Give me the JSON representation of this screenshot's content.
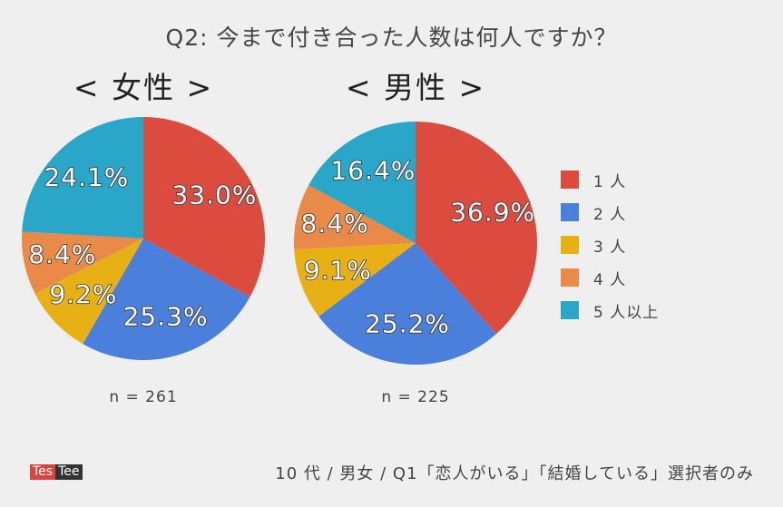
{
  "chart_data": [
    {
      "type": "pie",
      "title": "Q2: 今まで付き合った人数は何人ですか？",
      "subtitle": "< 女性 >",
      "categories": [
        "1人",
        "2人",
        "3人",
        "4人",
        "5人以上"
      ],
      "values": [
        33.0,
        25.3,
        9.2,
        8.4,
        24.1
      ],
      "labels": [
        "33.0%",
        "25.3%",
        "9.2%",
        "8.4%",
        "24.1%"
      ],
      "n": "n = 261",
      "colors": [
        "#db4c3f",
        "#4a7fdc",
        "#e7b015",
        "#ea8a48",
        "#29a6c8"
      ]
    },
    {
      "type": "pie",
      "title": "Q2: 今まで付き合った人数は何人ですか？",
      "subtitle": "< 男性 >",
      "categories": [
        "1人",
        "2人",
        "3人",
        "4人",
        "5人以上"
      ],
      "values": [
        36.9,
        25.2,
        9.1,
        8.4,
        16.4
      ],
      "labels": [
        "36.9%",
        "25.2%",
        "9.1%",
        "8.4%",
        "16.4%"
      ],
      "n": "n = 225",
      "colors": [
        "#db4c3f",
        "#4a7fdc",
        "#e7b015",
        "#ea8a48",
        "#29a6c8"
      ]
    }
  ],
  "header": {
    "title": "Q2: 今まで付き合った人数は何人ですか？"
  },
  "groups": {
    "female": {
      "title": "< 女性 >",
      "n": "n = 261"
    },
    "male": {
      "title": "< 男性 >",
      "n": "n = 225"
    }
  },
  "legend": {
    "items": [
      {
        "label": "1 人",
        "color": "#db4c3f"
      },
      {
        "label": "2 人",
        "color": "#4a7fdc"
      },
      {
        "label": "3 人",
        "color": "#e7b015"
      },
      {
        "label": "4 人",
        "color": "#ea8a48"
      },
      {
        "label": "5 人以上",
        "color": "#29a6c8"
      }
    ],
    "placement": "right"
  },
  "footer": {
    "brand_part1": "Tes",
    "brand_part2": "Tee",
    "note": "10 代 / 男女 / Q1「恋人がいる」「結婚している」選択者のみ"
  }
}
